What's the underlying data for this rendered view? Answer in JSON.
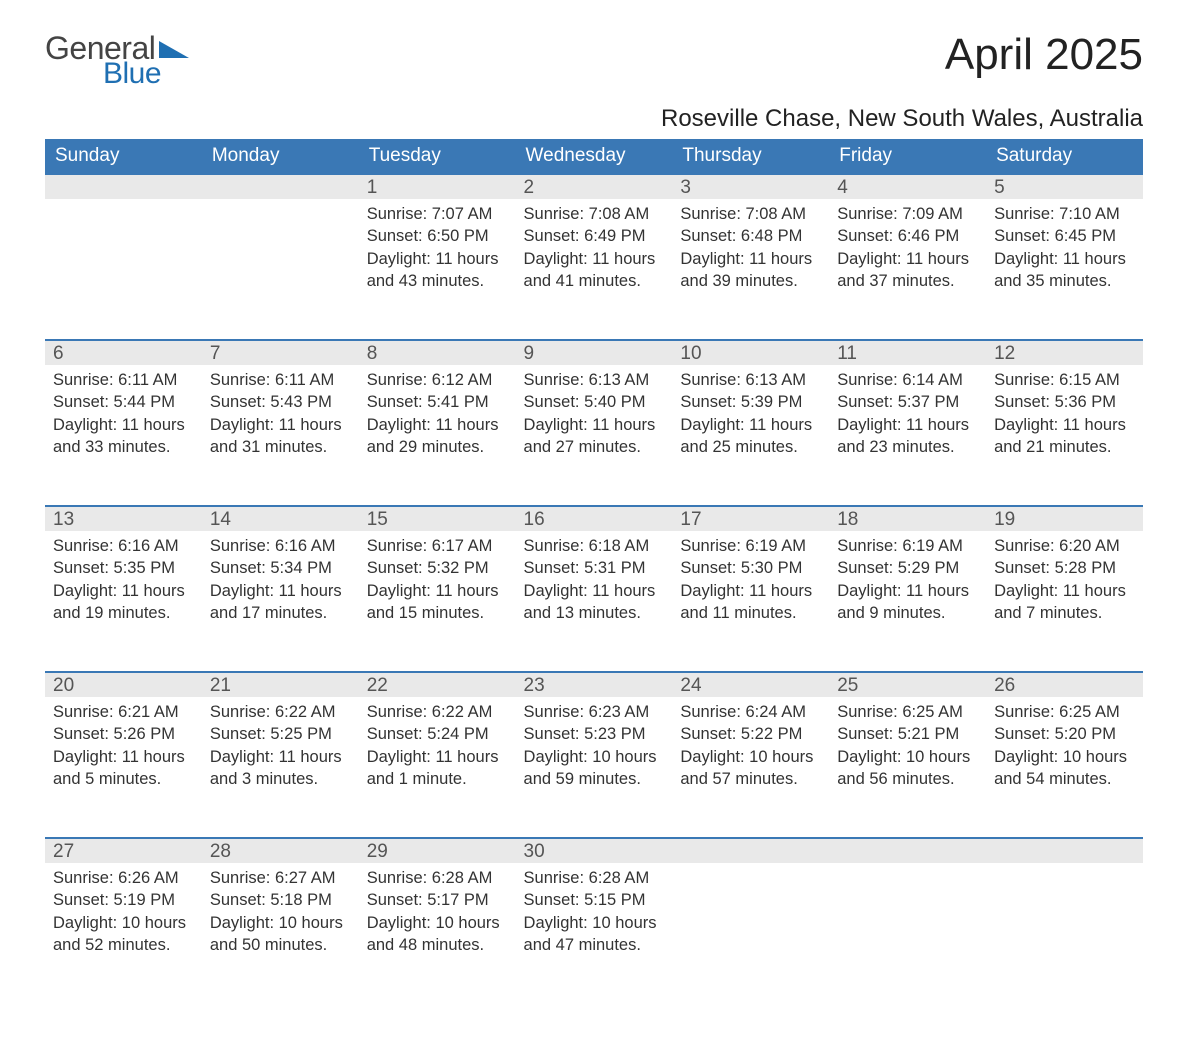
{
  "logo": {
    "text1": "General",
    "text2": "Blue",
    "accent_color": "#1f6fb2"
  },
  "title": "April 2025",
  "subtitle": "Roseville Chase, New South Wales, Australia",
  "theme": {
    "header_bg": "#3a78b5",
    "header_text": "#ffffff",
    "daynum_bg": "#e9e9e9",
    "daynum_border": "#3a78b5",
    "body_text": "#333333",
    "page_bg": "#ffffff"
  },
  "columns": [
    "Sunday",
    "Monday",
    "Tuesday",
    "Wednesday",
    "Thursday",
    "Friday",
    "Saturday"
  ],
  "weeks": [
    [
      null,
      null,
      {
        "d": "1",
        "sr": "Sunrise: 7:07 AM",
        "ss": "Sunset: 6:50 PM",
        "dl1": "Daylight: 11 hours",
        "dl2": "and 43 minutes."
      },
      {
        "d": "2",
        "sr": "Sunrise: 7:08 AM",
        "ss": "Sunset: 6:49 PM",
        "dl1": "Daylight: 11 hours",
        "dl2": "and 41 minutes."
      },
      {
        "d": "3",
        "sr": "Sunrise: 7:08 AM",
        "ss": "Sunset: 6:48 PM",
        "dl1": "Daylight: 11 hours",
        "dl2": "and 39 minutes."
      },
      {
        "d": "4",
        "sr": "Sunrise: 7:09 AM",
        "ss": "Sunset: 6:46 PM",
        "dl1": "Daylight: 11 hours",
        "dl2": "and 37 minutes."
      },
      {
        "d": "5",
        "sr": "Sunrise: 7:10 AM",
        "ss": "Sunset: 6:45 PM",
        "dl1": "Daylight: 11 hours",
        "dl2": "and 35 minutes."
      }
    ],
    [
      {
        "d": "6",
        "sr": "Sunrise: 6:11 AM",
        "ss": "Sunset: 5:44 PM",
        "dl1": "Daylight: 11 hours",
        "dl2": "and 33 minutes."
      },
      {
        "d": "7",
        "sr": "Sunrise: 6:11 AM",
        "ss": "Sunset: 5:43 PM",
        "dl1": "Daylight: 11 hours",
        "dl2": "and 31 minutes."
      },
      {
        "d": "8",
        "sr": "Sunrise: 6:12 AM",
        "ss": "Sunset: 5:41 PM",
        "dl1": "Daylight: 11 hours",
        "dl2": "and 29 minutes."
      },
      {
        "d": "9",
        "sr": "Sunrise: 6:13 AM",
        "ss": "Sunset: 5:40 PM",
        "dl1": "Daylight: 11 hours",
        "dl2": "and 27 minutes."
      },
      {
        "d": "10",
        "sr": "Sunrise: 6:13 AM",
        "ss": "Sunset: 5:39 PM",
        "dl1": "Daylight: 11 hours",
        "dl2": "and 25 minutes."
      },
      {
        "d": "11",
        "sr": "Sunrise: 6:14 AM",
        "ss": "Sunset: 5:37 PM",
        "dl1": "Daylight: 11 hours",
        "dl2": "and 23 minutes."
      },
      {
        "d": "12",
        "sr": "Sunrise: 6:15 AM",
        "ss": "Sunset: 5:36 PM",
        "dl1": "Daylight: 11 hours",
        "dl2": "and 21 minutes."
      }
    ],
    [
      {
        "d": "13",
        "sr": "Sunrise: 6:16 AM",
        "ss": "Sunset: 5:35 PM",
        "dl1": "Daylight: 11 hours",
        "dl2": "and 19 minutes."
      },
      {
        "d": "14",
        "sr": "Sunrise: 6:16 AM",
        "ss": "Sunset: 5:34 PM",
        "dl1": "Daylight: 11 hours",
        "dl2": "and 17 minutes."
      },
      {
        "d": "15",
        "sr": "Sunrise: 6:17 AM",
        "ss": "Sunset: 5:32 PM",
        "dl1": "Daylight: 11 hours",
        "dl2": "and 15 minutes."
      },
      {
        "d": "16",
        "sr": "Sunrise: 6:18 AM",
        "ss": "Sunset: 5:31 PM",
        "dl1": "Daylight: 11 hours",
        "dl2": "and 13 minutes."
      },
      {
        "d": "17",
        "sr": "Sunrise: 6:19 AM",
        "ss": "Sunset: 5:30 PM",
        "dl1": "Daylight: 11 hours",
        "dl2": "and 11 minutes."
      },
      {
        "d": "18",
        "sr": "Sunrise: 6:19 AM",
        "ss": "Sunset: 5:29 PM",
        "dl1": "Daylight: 11 hours",
        "dl2": "and 9 minutes."
      },
      {
        "d": "19",
        "sr": "Sunrise: 6:20 AM",
        "ss": "Sunset: 5:28 PM",
        "dl1": "Daylight: 11 hours",
        "dl2": "and 7 minutes."
      }
    ],
    [
      {
        "d": "20",
        "sr": "Sunrise: 6:21 AM",
        "ss": "Sunset: 5:26 PM",
        "dl1": "Daylight: 11 hours",
        "dl2": "and 5 minutes."
      },
      {
        "d": "21",
        "sr": "Sunrise: 6:22 AM",
        "ss": "Sunset: 5:25 PM",
        "dl1": "Daylight: 11 hours",
        "dl2": "and 3 minutes."
      },
      {
        "d": "22",
        "sr": "Sunrise: 6:22 AM",
        "ss": "Sunset: 5:24 PM",
        "dl1": "Daylight: 11 hours",
        "dl2": "and 1 minute."
      },
      {
        "d": "23",
        "sr": "Sunrise: 6:23 AM",
        "ss": "Sunset: 5:23 PM",
        "dl1": "Daylight: 10 hours",
        "dl2": "and 59 minutes."
      },
      {
        "d": "24",
        "sr": "Sunrise: 6:24 AM",
        "ss": "Sunset: 5:22 PM",
        "dl1": "Daylight: 10 hours",
        "dl2": "and 57 minutes."
      },
      {
        "d": "25",
        "sr": "Sunrise: 6:25 AM",
        "ss": "Sunset: 5:21 PM",
        "dl1": "Daylight: 10 hours",
        "dl2": "and 56 minutes."
      },
      {
        "d": "26",
        "sr": "Sunrise: 6:25 AM",
        "ss": "Sunset: 5:20 PM",
        "dl1": "Daylight: 10 hours",
        "dl2": "and 54 minutes."
      }
    ],
    [
      {
        "d": "27",
        "sr": "Sunrise: 6:26 AM",
        "ss": "Sunset: 5:19 PM",
        "dl1": "Daylight: 10 hours",
        "dl2": "and 52 minutes."
      },
      {
        "d": "28",
        "sr": "Sunrise: 6:27 AM",
        "ss": "Sunset: 5:18 PM",
        "dl1": "Daylight: 10 hours",
        "dl2": "and 50 minutes."
      },
      {
        "d": "29",
        "sr": "Sunrise: 6:28 AM",
        "ss": "Sunset: 5:17 PM",
        "dl1": "Daylight: 10 hours",
        "dl2": "and 48 minutes."
      },
      {
        "d": "30",
        "sr": "Sunrise: 6:28 AM",
        "ss": "Sunset: 5:15 PM",
        "dl1": "Daylight: 10 hours",
        "dl2": "and 47 minutes."
      },
      null,
      null,
      null
    ]
  ]
}
